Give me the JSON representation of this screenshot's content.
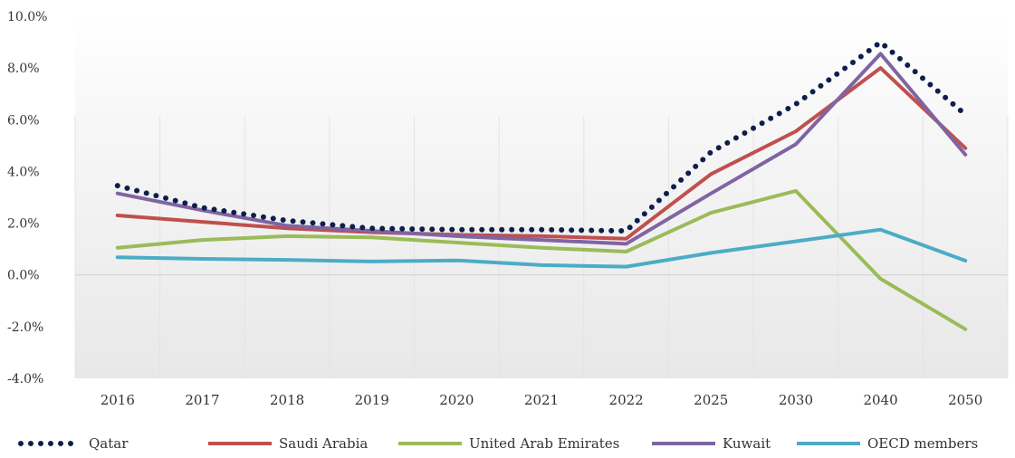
{
  "chart_data": {
    "type": "line",
    "categories": [
      "2016",
      "2017",
      "2018",
      "2019",
      "2020",
      "2021",
      "2022",
      "2025",
      "2030",
      "2040",
      "2050"
    ],
    "ylim": [
      -4,
      10
    ],
    "yticks": [
      10,
      8,
      6,
      4,
      2,
      0,
      -2,
      -4
    ],
    "ytick_labels": [
      "10.0%",
      "8.0%",
      "6.0%",
      "4.0%",
      "2.0%",
      "0.0%",
      "-2.0%",
      "-4.0%"
    ],
    "grid": "vertical",
    "legend_position": "bottom",
    "series": [
      {
        "name": "Qatar",
        "color": "#0d1f4a",
        "style": "dotted",
        "values": [
          3.45,
          2.6,
          2.1,
          1.8,
          1.75,
          1.75,
          1.7,
          4.75,
          6.6,
          9.0,
          6.2
        ]
      },
      {
        "name": "Saudi Arabia",
        "color": "#c0504d",
        "style": "solid",
        "values": [
          2.3,
          2.05,
          1.8,
          1.65,
          1.55,
          1.5,
          1.4,
          3.9,
          5.55,
          8.0,
          4.9
        ]
      },
      {
        "name": "United Arab Emirates",
        "color": "#9bbb59",
        "style": "solid",
        "values": [
          1.05,
          1.35,
          1.5,
          1.45,
          1.25,
          1.05,
          0.9,
          2.4,
          3.25,
          -0.15,
          -2.1
        ]
      },
      {
        "name": "Kuwait",
        "color": "#8064a2",
        "style": "solid",
        "values": [
          3.15,
          2.5,
          1.9,
          1.7,
          1.5,
          1.35,
          1.2,
          3.15,
          5.05,
          8.55,
          4.65
        ]
      },
      {
        "name": "OECD members",
        "color": "#4bacc6",
        "style": "solid",
        "values": [
          0.68,
          0.62,
          0.58,
          0.52,
          0.56,
          0.38,
          0.32,
          0.85,
          1.3,
          1.75,
          0.55
        ]
      }
    ]
  }
}
